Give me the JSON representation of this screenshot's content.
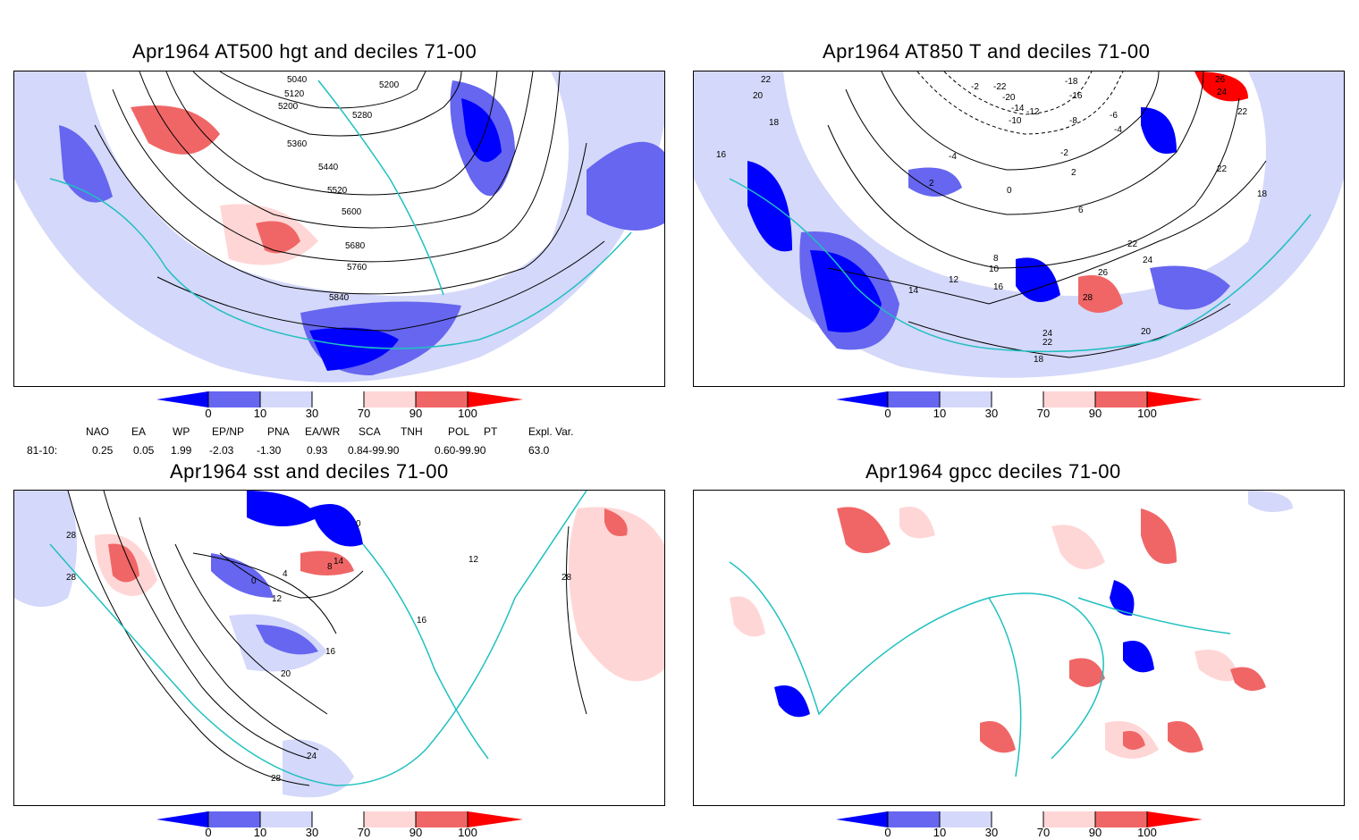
{
  "panels": [
    {
      "id": "p1",
      "title": "Apr1964 AT500 hgt and deciles 71-00",
      "contour_labels": [
        "5040",
        "5120",
        "5200",
        "5200",
        "5280",
        "5360",
        "5440",
        "5520",
        "5600",
        "5680",
        "5760",
        "5840"
      ]
    },
    {
      "id": "p2",
      "title": "Apr1964 AT850 T and deciles 71-00",
      "contour_labels": [
        "22",
        "20",
        "18",
        "16",
        "-2",
        "-22",
        "-20",
        "-18",
        "-16",
        "-14",
        "-12",
        "-10",
        "-8",
        "-6",
        "-4",
        "-2",
        "2",
        "0",
        "2",
        "6",
        "10",
        "8",
        "12",
        "14",
        "16",
        "22",
        "24",
        "26",
        "28",
        "24",
        "22",
        "20",
        "18",
        "26",
        "24",
        "22",
        "22",
        "18"
      ]
    },
    {
      "id": "p3",
      "title": "Apr1964 sst and deciles 71-00",
      "contour_labels": [
        "28",
        "28",
        "0",
        "4",
        "8",
        "14",
        "0",
        "12",
        "16",
        "16",
        "20",
        "24",
        "28",
        "28",
        "12"
      ]
    },
    {
      "id": "p4",
      "title": "Apr1964 gpcc deciles 71-00",
      "contour_labels": []
    }
  ],
  "legend": {
    "ticks": [
      "0",
      "10",
      "30",
      "70",
      "90",
      "100"
    ],
    "colors": {
      "below_0": "#0000ff",
      "d0_10": "#6666f0",
      "d10_30": "#d4d8fa",
      "d30_70": "#ffffff",
      "d70_90": "#ffd6d6",
      "d90_100": "#f06666",
      "above_100": "#ff0000"
    }
  },
  "indices": {
    "headers": [
      "NAO",
      "EA",
      "WP",
      "EP/NP",
      "PNA",
      "EA/WR",
      "SCA",
      "TNH",
      "POL",
      "PT",
      "Expl. Var."
    ],
    "row_label": "81-10:",
    "values": [
      "0.25",
      "0.05",
      "1.99",
      "-2.03",
      "-1.30",
      "0.93",
      "0.84-99.90",
      "0.60-99.90",
      "63.0"
    ]
  },
  "map_colors": {
    "coast": "#20c0c0",
    "contour": "#000000",
    "grid": "#999999"
  }
}
